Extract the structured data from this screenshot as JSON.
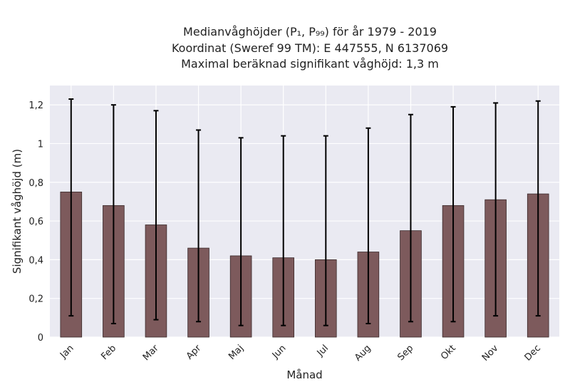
{
  "chart_data": {
    "type": "bar",
    "title_lines": [
      "Medianvåghöjder (P₁, P₉₉) för år 1979 - 2019",
      "Koordinat (Sweref 99 TM): E 447555, N 6137069",
      "Maximal beräknad signifikant våghöjd: 1,3 m"
    ],
    "xlabel": "Månad",
    "ylabel": "Signifikant våghöjd (m)",
    "categories": [
      "Jan",
      "Feb",
      "Mar",
      "Apr",
      "Maj",
      "Jun",
      "Jul",
      "Aug",
      "Sep",
      "Okt",
      "Nov",
      "Dec"
    ],
    "values": [
      0.75,
      0.68,
      0.58,
      0.46,
      0.42,
      0.41,
      0.4,
      0.44,
      0.55,
      0.68,
      0.71,
      0.74
    ],
    "err_low": [
      0.11,
      0.07,
      0.09,
      0.08,
      0.06,
      0.06,
      0.06,
      0.07,
      0.08,
      0.08,
      0.11,
      0.11
    ],
    "err_high": [
      1.23,
      1.2,
      1.17,
      1.07,
      1.03,
      1.04,
      1.04,
      1.08,
      1.15,
      1.19,
      1.21,
      1.22
    ],
    "ylim": [
      0,
      1.3
    ],
    "yticks": [
      0,
      0.2,
      0.4,
      0.6,
      0.8,
      1,
      1.2
    ],
    "ytick_labels": [
      "0",
      "0,2",
      "0,4",
      "0,6",
      "0,8",
      "1",
      "1,2"
    ],
    "grid": true,
    "colors": {
      "bar": "#7d5a5c",
      "bar_edge": "#3a2a2b",
      "plot_bg": "#eaeaf2",
      "grid": "#ffffff",
      "errorbar": "#000000"
    }
  }
}
